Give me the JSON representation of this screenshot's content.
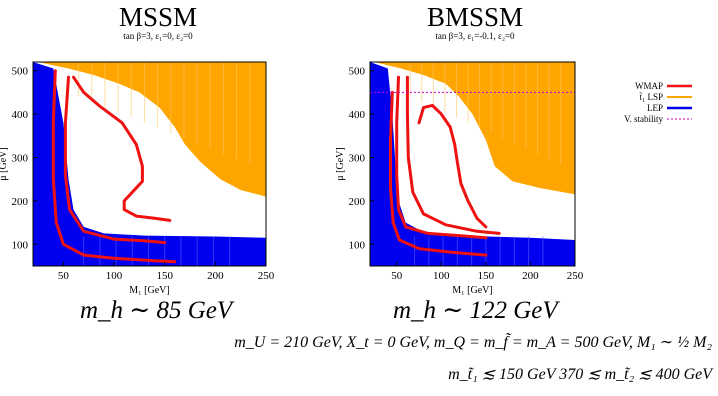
{
  "colors": {
    "wmap": "#ee1111",
    "lsp": "#ffa500",
    "lep": "#0000ee",
    "vstab": "#cc00cc",
    "frame": "#000000"
  },
  "legend": {
    "wmap": "WMAP",
    "lsp": "t̃₁ LSP",
    "lep": "LEP",
    "vstab": "V. stability"
  },
  "chart_data": [
    {
      "type": "area",
      "title": "MSSM",
      "subtitle": "tan β=3,  ε₁=0,  ε₂=0",
      "xlabel": "M₁  [GeV]",
      "ylabel": "μ  [GeV]",
      "xlim": [
        20,
        250
      ],
      "ylim": [
        50,
        520
      ],
      "xticks": [
        50,
        100,
        150,
        200,
        250
      ],
      "yticks": [
        100,
        200,
        300,
        400,
        500
      ],
      "higgs_mass_label": "m_h ∼ 85 GeV",
      "regions": {
        "lsp_boundary": [
          [
            25,
            520
          ],
          [
            55,
            505
          ],
          [
            80,
            490
          ],
          [
            105,
            470
          ],
          [
            125,
            450
          ],
          [
            145,
            415
          ],
          [
            160,
            370
          ],
          [
            170,
            330
          ],
          [
            185,
            290
          ],
          [
            205,
            250
          ],
          [
            225,
            225
          ],
          [
            250,
            210
          ]
        ],
        "white_lower_boundary": [
          [
            55,
            505
          ],
          [
            70,
            430
          ],
          [
            90,
            370
          ],
          [
            110,
            320
          ],
          [
            130,
            280
          ],
          [
            160,
            250
          ],
          [
            200,
            230
          ],
          [
            250,
            205
          ]
        ],
        "lep_upper_boundary": [
          [
            20,
            520
          ],
          [
            40,
            505
          ],
          [
            50,
            380
          ],
          [
            55,
            250
          ],
          [
            60,
            180
          ],
          [
            70,
            140
          ],
          [
            90,
            125
          ],
          [
            130,
            120
          ],
          [
            200,
            118
          ],
          [
            250,
            115
          ]
        ]
      },
      "wmap_curves": [
        [
          [
            55,
            485
          ],
          [
            52,
            380
          ],
          [
            52,
            260
          ],
          [
            56,
            180
          ],
          [
            70,
            130
          ],
          [
            100,
            112
          ],
          [
            130,
            108
          ],
          [
            150,
            104
          ]
        ],
        [
          [
            60,
            485
          ],
          [
            70,
            450
          ],
          [
            85,
            420
          ],
          [
            108,
            380
          ],
          [
            122,
            330
          ],
          [
            128,
            280
          ],
          [
            128,
            245
          ],
          [
            118,
            220
          ],
          [
            110,
            200
          ],
          [
            110,
            180
          ],
          [
            122,
            165
          ],
          [
            140,
            160
          ],
          [
            155,
            155
          ]
        ],
        [
          [
            42,
            500
          ],
          [
            40,
            380
          ],
          [
            40,
            250
          ],
          [
            43,
            150
          ],
          [
            50,
            100
          ],
          [
            70,
            75
          ],
          [
            100,
            68
          ],
          [
            140,
            62
          ],
          [
            160,
            60
          ]
        ]
      ]
    },
    {
      "type": "area",
      "title": "BMSSM",
      "subtitle": "tan β=3,  ε₁=-0.1,  ε₂=0",
      "xlabel": "M₁  [GeV]",
      "ylabel": "μ  [GeV]",
      "xlim": [
        20,
        250
      ],
      "ylim": [
        50,
        520
      ],
      "xticks": [
        50,
        100,
        150,
        200,
        250
      ],
      "yticks": [
        100,
        200,
        300,
        400,
        500
      ],
      "vacuum_stability_mu": 450,
      "higgs_mass_label": "m_h ∼ 122 GeV",
      "regions": {
        "lsp_boundary": [
          [
            25,
            520
          ],
          [
            55,
            505
          ],
          [
            80,
            490
          ],
          [
            105,
            470
          ],
          [
            120,
            440
          ],
          [
            135,
            400
          ],
          [
            150,
            340
          ],
          [
            160,
            280
          ],
          [
            180,
            245
          ],
          [
            210,
            230
          ],
          [
            250,
            215
          ]
        ],
        "white_lower_boundary": [
          [
            55,
            505
          ],
          [
            60,
            430
          ],
          [
            72,
            370
          ],
          [
            90,
            320
          ],
          [
            115,
            280
          ],
          [
            150,
            250
          ],
          [
            200,
            225
          ],
          [
            250,
            205
          ]
        ],
        "lep_upper_boundary": [
          [
            20,
            520
          ],
          [
            40,
            505
          ],
          [
            45,
            400
          ],
          [
            48,
            300
          ],
          [
            52,
            200
          ],
          [
            60,
            150
          ],
          [
            80,
            128
          ],
          [
            120,
            120
          ],
          [
            200,
            115
          ],
          [
            250,
            110
          ]
        ]
      },
      "wmap_curves": [
        [
          [
            52,
            485
          ],
          [
            50,
            380
          ],
          [
            50,
            260
          ],
          [
            52,
            180
          ],
          [
            60,
            140
          ],
          [
            85,
            125
          ],
          [
            120,
            120
          ],
          [
            150,
            115
          ]
        ],
        [
          [
            62,
            485
          ],
          [
            62,
            400
          ],
          [
            63,
            300
          ],
          [
            68,
            220
          ],
          [
            80,
            170
          ],
          [
            105,
            145
          ],
          [
            140,
            130
          ],
          [
            165,
            125
          ]
        ],
        [
          [
            75,
            380
          ],
          [
            80,
            415
          ],
          [
            90,
            420
          ],
          [
            100,
            400
          ],
          [
            110,
            370
          ],
          [
            115,
            330
          ],
          [
            118,
            290
          ],
          [
            122,
            240
          ],
          [
            130,
            200
          ],
          [
            140,
            160
          ],
          [
            150,
            140
          ]
        ],
        [
          [
            45,
            450
          ],
          [
            43,
            340
          ],
          [
            43,
            230
          ],
          [
            46,
            150
          ],
          [
            53,
            110
          ],
          [
            75,
            90
          ],
          [
            110,
            82
          ],
          [
            150,
            75
          ]
        ]
      ]
    }
  ],
  "footer": {
    "line1": "m_U = 210 GeV, X_t = 0 GeV, m_Q = m_f̃ = m_A = 500 GeV, M₁ ∼ ½ M₂",
    "line2": "m_t̃₁ ≲ 150 GeV    370 ≲ m_t̃₂ ≲ 400 GeV"
  }
}
